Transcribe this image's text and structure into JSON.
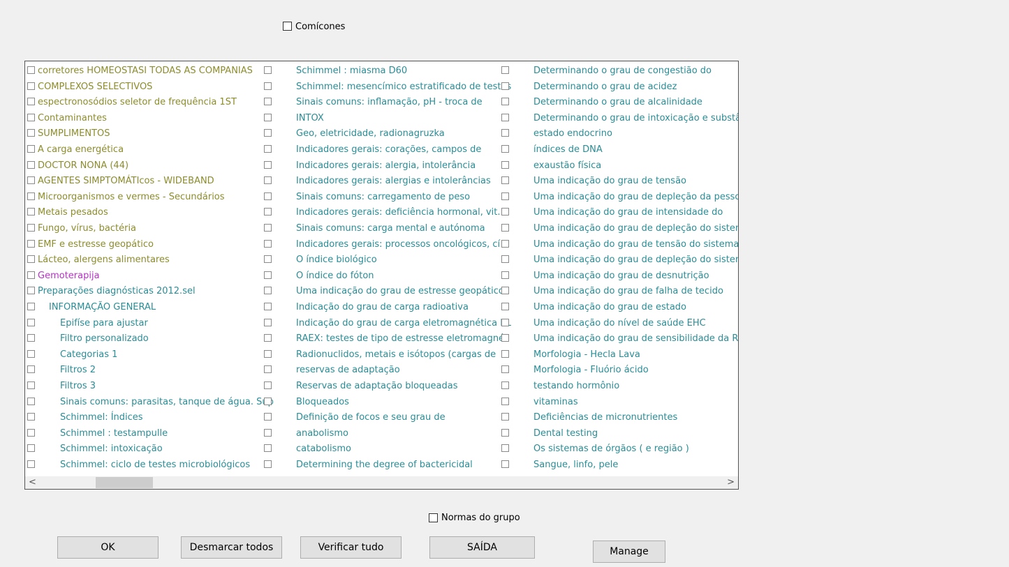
{
  "top_checkbox": {
    "label": "Comícones",
    "checked": false
  },
  "colors": {
    "olive": "#8c8c2c",
    "teal": "#2a8d96",
    "magenta": "#b832c8"
  },
  "list": {
    "columns": [
      [
        {
          "label": "corretores HOMEOSTASI TODAS AS COMPANIAS",
          "color": "olive",
          "level": 0
        },
        {
          "label": "COMPLEXOS SELECTIVOS",
          "color": "olive",
          "level": 0
        },
        {
          "label": "espectronosódios seletor de frequência 1ST",
          "color": "olive",
          "level": 0
        },
        {
          "label": "Contaminantes",
          "color": "olive",
          "level": 0
        },
        {
          "label": "SUMPLIMENTOS",
          "color": "olive",
          "level": 0
        },
        {
          "label": "A carga energética",
          "color": "olive",
          "level": 0
        },
        {
          "label": "DOCTOR NONA (44)",
          "color": "olive",
          "level": 0
        },
        {
          "label": "AGENTES SIMPTOMÁTIcos - WIDEBAND",
          "color": "olive",
          "level": 0
        },
        {
          "label": "Microorganismos e vermes - Secundários",
          "color": "olive",
          "level": 0
        },
        {
          "label": "Metais pesados",
          "color": "olive",
          "level": 0
        },
        {
          "label": "Fungo, vírus, bactéria",
          "color": "olive",
          "level": 0
        },
        {
          "label": "EMF e estresse geopático",
          "color": "olive",
          "level": 0
        },
        {
          "label": "Lácteo, alergens alimentares",
          "color": "olive",
          "level": 0
        },
        {
          "label": "Gemoterapija",
          "color": "magenta",
          "level": 0
        },
        {
          "label": "Preparações diagnósticas 2012.sel",
          "color": "teal",
          "level": 0
        },
        {
          "label": "INFORMAÇÃO GENERAL",
          "color": "teal",
          "level": 1
        },
        {
          "label": "Epifíse para ajustar",
          "color": "teal",
          "level": 2
        },
        {
          "label": "Filtro personalizado",
          "color": "teal",
          "level": 2
        },
        {
          "label": "Categorias 1",
          "color": "teal",
          "level": 2
        },
        {
          "label": "Filtros 2",
          "color": "teal",
          "level": 2
        },
        {
          "label": "Filtros 3",
          "color": "teal",
          "level": 2
        },
        {
          "label": "Sinais comuns: parasitas, tanque de água. Sup",
          "color": "teal",
          "level": 2
        },
        {
          "label": "Schimmel: Índices",
          "color": "teal",
          "level": 2
        },
        {
          "label": "Schimmel : testampulle",
          "color": "teal",
          "level": 2
        },
        {
          "label": "Schimmel: intoxicação",
          "color": "teal",
          "level": 2
        },
        {
          "label": "Schimmel: ciclo de testes microbiológicos",
          "color": "teal",
          "level": 2
        }
      ],
      [
        {
          "label": "Schimmel : miasma D60",
          "color": "teal"
        },
        {
          "label": "Schimmel: mesencímico estratificado de testes",
          "color": "teal"
        },
        {
          "label": "Sinais comuns: inflamação, pH - troca de",
          "color": "teal"
        },
        {
          "label": "INTOX",
          "color": "teal"
        },
        {
          "label": "Geo, eletricidade, radionagruzka",
          "color": "teal"
        },
        {
          "label": "Indicadores gerais: corações, campos de",
          "color": "teal"
        },
        {
          "label": "Indicadores gerais: alergia, intolerância",
          "color": "teal"
        },
        {
          "label": "Indicadores gerais: alergias e intolerâncias",
          "color": "teal"
        },
        {
          "label": "Sinais comuns: carregamento de peso",
          "color": "teal"
        },
        {
          "label": "Indicadores gerais: deficiência hormonal, vit.",
          "color": "teal"
        },
        {
          "label": "Sinais comuns: carga mental e autónoma",
          "color": "teal"
        },
        {
          "label": "Indicadores gerais: processos oncológicos, cí",
          "color": "teal"
        },
        {
          "label": "O índice biológico",
          "color": "teal"
        },
        {
          "label": "O índice do fóton",
          "color": "teal"
        },
        {
          "label": "Uma indicação do grau de estresse geopático",
          "color": "teal"
        },
        {
          "label": "Indicação do grau de carga radioativa",
          "color": "teal"
        },
        {
          "label": "Indicação do grau de carga eletromagnética KL",
          "color": "teal"
        },
        {
          "label": "RAEX: testes de tipo de estresse eletromagné",
          "color": "teal"
        },
        {
          "label": "Radionuclidos, metais e isótopos (cargas de",
          "color": "teal"
        },
        {
          "label": "reservas de adaptação",
          "color": "teal"
        },
        {
          "label": "Reservas de adaptação bloqueadas",
          "color": "teal"
        },
        {
          "label": "Bloqueados",
          "color": "teal"
        },
        {
          "label": "Definição de focos e seu grau de",
          "color": "teal"
        },
        {
          "label": "anabolismo",
          "color": "teal"
        },
        {
          "label": "catabolismo",
          "color": "teal"
        },
        {
          "label": "Determining the degree of bactericidal",
          "color": "teal"
        }
      ],
      [
        {
          "label": "Determinando o grau de congestião do",
          "color": "teal"
        },
        {
          "label": "Determinando o grau de acidez",
          "color": "teal"
        },
        {
          "label": "Determinando o grau de alcalinidade",
          "color": "teal"
        },
        {
          "label": "Determinando o grau de intoxicação e substâ",
          "color": "teal"
        },
        {
          "label": "estado endocrino",
          "color": "teal"
        },
        {
          "label": "índices de DNA",
          "color": "teal"
        },
        {
          "label": "exaustão física",
          "color": "teal"
        },
        {
          "label": "Uma indicação do grau de tensão",
          "color": "teal"
        },
        {
          "label": "Uma indicação do grau de depleção da pessoa",
          "color": "teal"
        },
        {
          "label": "Uma indicação do grau de intensidade do",
          "color": "teal"
        },
        {
          "label": "Uma indicação do grau de depleção do sistema",
          "color": "teal"
        },
        {
          "label": "Uma indicação do grau de tensão do sistema",
          "color": "teal"
        },
        {
          "label": "Uma indicação do grau de depleção do sistema",
          "color": "teal"
        },
        {
          "label": "Uma indicação do grau de desnutrição",
          "color": "teal"
        },
        {
          "label": "Uma indicação do grau de falha de tecido",
          "color": "teal"
        },
        {
          "label": "Uma indicação do grau de estado",
          "color": "teal"
        },
        {
          "label": "Uma indicação do nível de saúde EHC",
          "color": "teal"
        },
        {
          "label": "Uma indicação do grau de sensibilidade da RU",
          "color": "teal"
        },
        {
          "label": "Morfologia - Hecla Lava",
          "color": "teal"
        },
        {
          "label": "Morfologia - Fluório ácido",
          "color": "teal"
        },
        {
          "label": "testando hormônio",
          "color": "teal"
        },
        {
          "label": "vitaminas",
          "color": "teal"
        },
        {
          "label": "Deficiências de micronutrientes",
          "color": "teal"
        },
        {
          "label": "Dental testing",
          "color": "teal"
        },
        {
          "label": "Os sistemas de órgãos ( e região )",
          "color": "teal"
        },
        {
          "label": "Sangue, linfo, pele",
          "color": "teal"
        }
      ]
    ],
    "scroll_left": "<",
    "scroll_right": ">"
  },
  "group_checkbox": {
    "label": "Normas do grupo",
    "checked": false
  },
  "buttons": {
    "ok": "OK",
    "uncheck_all": "Desmarcar todos",
    "check_all": "Verificar tudo",
    "exit": "SAÍDA",
    "manage": "Manage"
  }
}
